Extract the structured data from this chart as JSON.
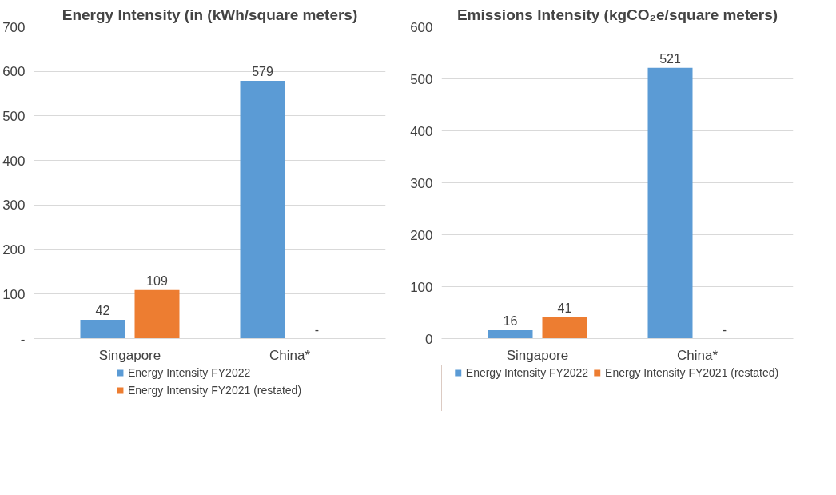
{
  "chart_data": [
    {
      "type": "bar",
      "title": "Energy Intensity (in (kWh/square meters)",
      "categories": [
        "Singapore",
        "China*"
      ],
      "series": [
        {
          "name": "Energy Intensity FY2022",
          "color": "#5b9bd5",
          "values": [
            42,
            579
          ],
          "value_labels": [
            "42",
            "579"
          ]
        },
        {
          "name": "Energy Intensity FY2021 (restated)",
          "color": "#ed7d31",
          "values": [
            109,
            null
          ],
          "value_labels": [
            "109",
            "-"
          ]
        }
      ],
      "ylim": [
        0,
        700
      ],
      "yticks": [
        {
          "value": 0,
          "label": "-"
        },
        100,
        200,
        300,
        400,
        500,
        600,
        700
      ],
      "grid": "y",
      "legend": "bottom"
    },
    {
      "type": "bar",
      "title": "Emissions Intensity (kgCO₂e/square meters)",
      "categories": [
        "Singapore",
        "China*"
      ],
      "series": [
        {
          "name": "Energy Intensity FY2022",
          "color": "#5b9bd5",
          "values": [
            16,
            521
          ],
          "value_labels": [
            "16",
            "521"
          ]
        },
        {
          "name": "Energy Intensity FY2021 (restated)",
          "color": "#ed7d31",
          "values": [
            41,
            null
          ],
          "value_labels": [
            "41",
            "-"
          ]
        }
      ],
      "ylim": [
        0,
        600
      ],
      "yticks": [
        0,
        100,
        200,
        300,
        400,
        500,
        600
      ],
      "grid": "y",
      "legend": "bottom"
    }
  ]
}
